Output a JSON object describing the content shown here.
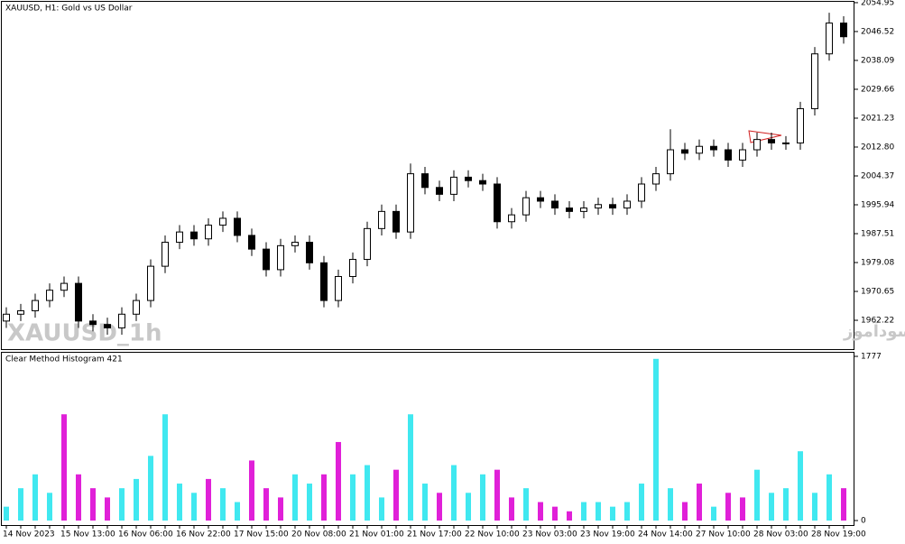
{
  "chart_data": [
    {
      "type": "candlestick",
      "title": "XAUUSD, H1:  Gold vs US Dollar",
      "watermark": "XAUUSD_1h",
      "annotation": "انتشار در سایت سودآموز",
      "categories": [
        "14 Nov 2023",
        null,
        null,
        null,
        "15 Nov 13:00",
        null,
        null,
        null,
        "16 Nov 06:00",
        null,
        null,
        null,
        "16 Nov 22:00",
        null,
        null,
        null,
        "17 Nov 15:00",
        null,
        null,
        null,
        "20 Nov 08:00",
        null,
        null,
        null,
        "21 Nov 01:00",
        null,
        null,
        null,
        "21 Nov 17:00",
        null,
        null,
        null,
        "22 Nov 10:00",
        null,
        null,
        null,
        "23 Nov 03:00",
        null,
        null,
        null,
        "23 Nov 19:00",
        null,
        null,
        null,
        "24 Nov 14:00",
        null,
        null,
        null,
        "27 Nov 10:00",
        null,
        null,
        null,
        "28 Nov 03:00",
        null,
        null,
        null,
        "28 Nov 19:00",
        null,
        null
      ],
      "open": [
        1962,
        1964,
        1965,
        1968,
        1971,
        1973,
        1962,
        1961,
        1960,
        1964,
        1968,
        1978,
        1985,
        1988,
        1986,
        1990,
        1992,
        1987,
        1983,
        1977,
        1984,
        1985,
        1979,
        1968,
        1975,
        1980,
        1989,
        1994,
        1988,
        2005,
        2001,
        1999,
        2004,
        2003,
        2002,
        1991,
        1993,
        1998,
        1997,
        1995,
        1994,
        1995,
        1996,
        1995,
        1997,
        2002,
        2005,
        2012,
        2011,
        2013,
        2012,
        2009,
        2012,
        2015,
        2014,
        2014,
        2024,
        2040,
        2049
      ],
      "high": [
        1966,
        1967,
        1970,
        1973,
        1975,
        1975,
        1964,
        1963,
        1966,
        1970,
        1980,
        1987,
        1990,
        1990,
        1992,
        1994,
        1994,
        1989,
        1985,
        1986,
        1987,
        1987,
        1981,
        1977,
        1982,
        1991,
        1996,
        1996,
        2008,
        2007,
        2003,
        2006,
        2006,
        2005,
        2004,
        1995,
        2000,
        2000,
        1999,
        1997,
        1997,
        1998,
        1998,
        1999,
        2004,
        2007,
        2018,
        2014,
        2015,
        2015,
        2014,
        2014,
        2017,
        2017,
        2016,
        2026,
        2042,
        2052,
        2051
      ],
      "low": [
        1960,
        1962,
        1963,
        1966,
        1969,
        1960,
        1959,
        1958,
        1958,
        1962,
        1966,
        1976,
        1983,
        1984,
        1984,
        1988,
        1985,
        1981,
        1975,
        1975,
        1982,
        1977,
        1966,
        1966,
        1973,
        1978,
        1987,
        1986,
        1986,
        1999,
        1997,
        1997,
        2001,
        2000,
        1989,
        1989,
        1991,
        1995,
        1993,
        1992,
        1992,
        1993,
        1993,
        1993,
        1995,
        2000,
        2003,
        2009,
        2009,
        2010,
        2007,
        2007,
        2010,
        2012,
        2012,
        2012,
        2022,
        2038,
        2043
      ],
      "close": [
        1964,
        1965,
        1968,
        1971,
        1973,
        1962,
        1961,
        1960,
        1964,
        1968,
        1978,
        1985,
        1988,
        1986,
        1990,
        1992,
        1987,
        1983,
        1977,
        1984,
        1985,
        1979,
        1968,
        1975,
        1980,
        1989,
        1994,
        1988,
        2005,
        2001,
        1999,
        2004,
        2003,
        2002,
        1991,
        1993,
        1998,
        1997,
        1995,
        1994,
        1995,
        1996,
        1995,
        1997,
        2002,
        2005,
        2012,
        2011,
        2013,
        2012,
        2009,
        2012,
        2015,
        2014,
        2014,
        2024,
        2040,
        2049,
        2045
      ],
      "ylim": [
        1953.8,
        2055.2
      ],
      "yticks": [
        2054.95,
        2046.52,
        2038.09,
        2029.66,
        2021.23,
        {
          "value": 2012.8,
          "label": "2012.80"
        },
        2004.37,
        1995.94,
        1987.51,
        1979.08,
        1970.65,
        1962.22
      ]
    },
    {
      "type": "bar",
      "title": "Clear Method Histogram 421",
      "values": [
        150,
        350,
        500,
        300,
        1150,
        500,
        350,
        250,
        350,
        450,
        700,
        1150,
        400,
        300,
        450,
        350,
        200,
        650,
        350,
        250,
        500,
        400,
        500,
        850,
        500,
        600,
        250,
        550,
        1150,
        400,
        300,
        600,
        300,
        500,
        550,
        250,
        350,
        200,
        150,
        100,
        200,
        200,
        150,
        200,
        400,
        1750,
        350,
        200,
        400,
        150,
        300,
        250,
        550,
        300,
        350,
        750,
        300,
        500,
        350
      ],
      "colors": [
        "#40e8f0",
        "#40e8f0",
        "#40e8f0",
        "#40e8f0",
        "#e020d8",
        "#e020d8",
        "#e020d8",
        "#e020d8",
        "#40e8f0",
        "#40e8f0",
        "#40e8f0",
        "#40e8f0",
        "#40e8f0",
        "#40e8f0",
        "#e020d8",
        "#40e8f0",
        "#40e8f0",
        "#e020d8",
        "#e020d8",
        "#e020d8",
        "#40e8f0",
        "#40e8f0",
        "#e020d8",
        "#e020d8",
        "#40e8f0",
        "#40e8f0",
        "#40e8f0",
        "#e020d8",
        "#40e8f0",
        "#40e8f0",
        "#e020d8",
        "#40e8f0",
        "#40e8f0",
        "#40e8f0",
        "#e020d8",
        "#e020d8",
        "#40e8f0",
        "#e020d8",
        "#e020d8",
        "#e020d8",
        "#40e8f0",
        "#40e8f0",
        "#40e8f0",
        "#40e8f0",
        "#40e8f0",
        "#40e8f0",
        "#40e8f0",
        "#e020d8",
        "#e020d8",
        "#40e8f0",
        "#e020d8",
        "#e020d8",
        "#40e8f0",
        "#40e8f0",
        "#40e8f0",
        "#40e8f0",
        "#40e8f0",
        "#40e8f0",
        "#e020d8"
      ],
      "ylim": [
        0,
        1826
      ],
      "yticks": [
        1777,
        0
      ]
    }
  ]
}
